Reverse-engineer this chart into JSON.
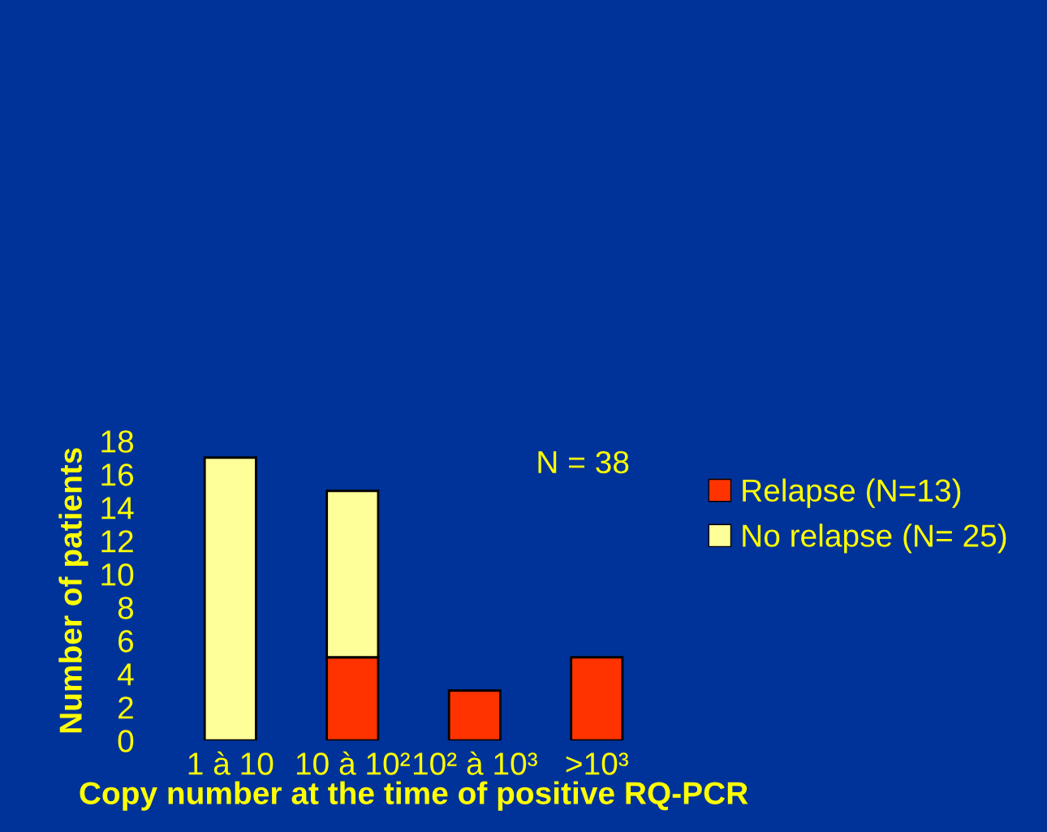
{
  "chart_data": {
    "type": "bar",
    "stacked": true,
    "xlabel": "Copy number at the time of positive RQ-PCR",
    "ylabel": "Number of patients",
    "categories": [
      "1 à 10",
      "10 à 10²",
      "10² à 10³",
      ">10³"
    ],
    "series": [
      {
        "name": "Relapse (N=13)",
        "color": "#ff3300",
        "values": [
          0,
          5,
          3,
          5
        ]
      },
      {
        "name": "No relapse (N= 25)",
        "color": "#ffff99",
        "values": [
          17,
          10,
          0,
          0
        ]
      }
    ],
    "ylim": [
      0,
      18
    ],
    "yticks": [
      0,
      2,
      4,
      6,
      8,
      10,
      12,
      14,
      16,
      18
    ],
    "grid": false,
    "legend": "right",
    "annotations": [
      "N = 38"
    ]
  }
}
